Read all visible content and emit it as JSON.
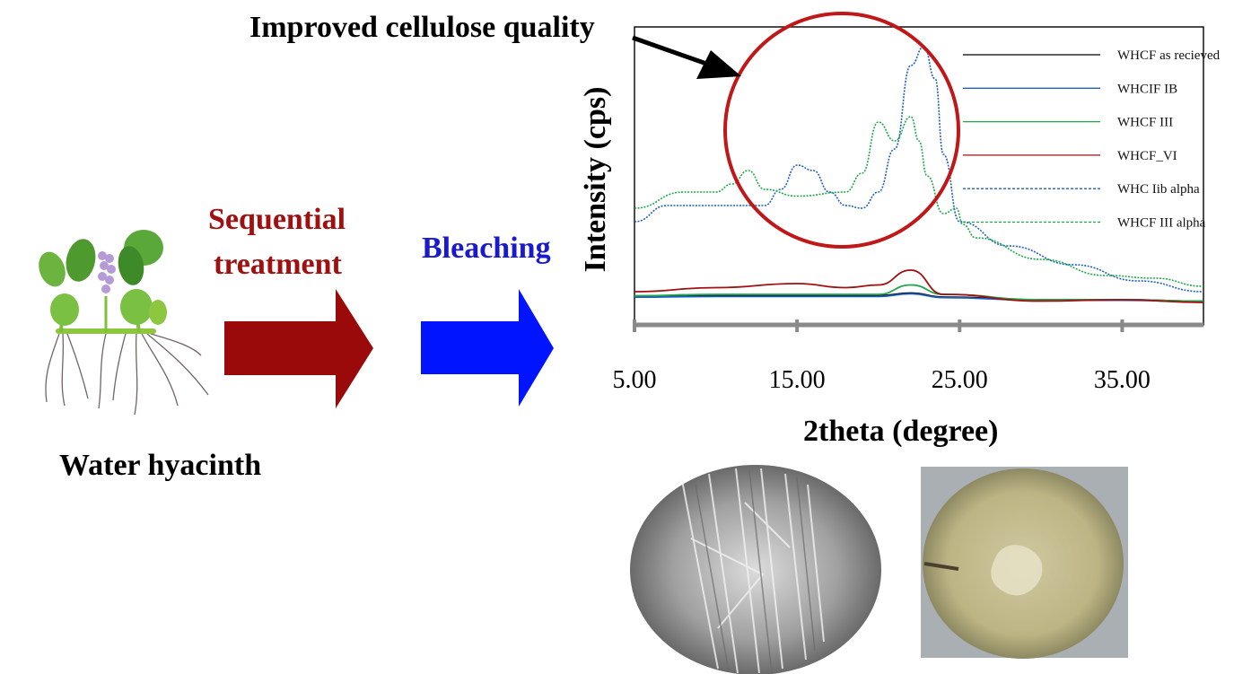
{
  "headline": "Improved cellulose quality",
  "steps": {
    "sequential_line1": "Sequential",
    "sequential_line2": "treatment",
    "bleaching": "Bleaching",
    "source": "Water hyacinth"
  },
  "colors": {
    "arrow_red": "#9b0a0a",
    "arrow_blue": "#0014ff",
    "circle": "#c01818",
    "sequential_text": "#a01010",
    "bleaching_text": "#1a1acc"
  },
  "chart_data": {
    "type": "line",
    "xlabel": "2theta (degree)",
    "ylabel": "Intensity (cps)",
    "xlim": [
      5,
      40
    ],
    "ylim": [
      0,
      100
    ],
    "xticks": [
      5,
      15,
      25,
      35
    ],
    "xtick_labels": [
      "5.00",
      "15.00",
      "25.00",
      "35.00"
    ],
    "grid": false,
    "legend_position": "top-right",
    "series": [
      {
        "name": "WHCF as recieved",
        "color": "#000000",
        "dash": "solid",
        "x": [
          5,
          10,
          15,
          20,
          22,
          24,
          30,
          35,
          40
        ],
        "y": [
          7,
          7.5,
          7.5,
          7.5,
          8.5,
          7,
          6,
          6,
          5.5
        ]
      },
      {
        "name": "WHCIF IB",
        "color": "#1f5fbf",
        "dash": "solid",
        "x": [
          5,
          10,
          15,
          20,
          22,
          24,
          30,
          35,
          40
        ],
        "y": [
          7,
          7.2,
          7.2,
          7.2,
          8.2,
          6.8,
          5.8,
          5.8,
          5.2
        ]
      },
      {
        "name": "WHCF III",
        "color": "#1fa84a",
        "dash": "solid",
        "x": [
          5,
          10,
          15,
          20,
          22,
          24,
          30,
          35,
          40
        ],
        "y": [
          7.5,
          8,
          8,
          8,
          11.5,
          8,
          6,
          6,
          5.5
        ]
      },
      {
        "name": "WHCF_VI",
        "color": "#a01010",
        "dash": "solid",
        "x": [
          5,
          10,
          15,
          18,
          20,
          22,
          24,
          30,
          35,
          40
        ],
        "y": [
          9,
          10.5,
          12,
          10.5,
          11.5,
          17,
          8,
          5.5,
          6,
          5
        ]
      },
      {
        "name": "WHC Iib alpha",
        "color": "#1f5fbf",
        "dash": "dashed",
        "x": [
          5,
          7,
          10,
          13,
          14,
          15,
          16,
          17,
          18,
          19,
          20,
          21,
          22,
          22.8,
          23.5,
          24,
          25,
          28,
          32,
          36,
          40
        ],
        "y": [
          35,
          41,
          41,
          41,
          47,
          56,
          54,
          46,
          41,
          40,
          46,
          62,
          93,
          100,
          88,
          60,
          35,
          26,
          19,
          13,
          9
        ]
      },
      {
        "name": "WHCF III alpha",
        "color": "#1fa84a",
        "dash": "dashed",
        "x": [
          5,
          8,
          10,
          11,
          12,
          13,
          15,
          18,
          19,
          20,
          21,
          22,
          22.5,
          23,
          24,
          24.8,
          25.2,
          26,
          30,
          34,
          37,
          40
        ],
        "y": [
          40,
          46,
          46,
          49,
          54,
          47,
          44.5,
          46,
          53,
          72,
          65,
          74,
          65,
          52,
          38,
          40,
          34,
          29,
          21,
          15,
          14,
          11
        ]
      }
    ]
  }
}
